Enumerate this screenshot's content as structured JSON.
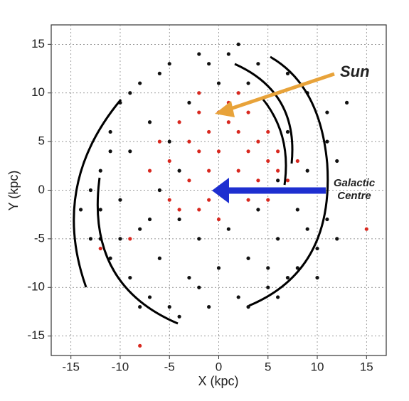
{
  "chart_data": {
    "type": "scatter",
    "x_label": "X (kpc)",
    "y_label": "Y (kpc)",
    "xlim": [
      -17,
      17
    ],
    "ylim": [
      -17,
      17
    ],
    "xticks": [
      -15,
      -10,
      -5,
      0,
      5,
      10,
      15
    ],
    "yticks": [
      -15,
      -10,
      -5,
      0,
      5,
      10,
      15
    ],
    "grid": true,
    "annotations": [
      {
        "text": "Sun",
        "color": "#e8a33a"
      },
      {
        "text": [
          "Galactic",
          "Centre"
        ],
        "color": "#1e2fd0"
      }
    ],
    "series": [
      {
        "color": "#111111",
        "x": [
          -13,
          -12,
          -11,
          -10,
          -8,
          -5,
          -2,
          1,
          4,
          7,
          9,
          11,
          12,
          11,
          10,
          8,
          5,
          2,
          -1,
          -4,
          -7,
          -9,
          -11,
          -12,
          -13,
          -9,
          -8,
          -6,
          -3,
          0,
          3,
          6,
          8,
          9,
          7,
          -7,
          -10,
          -6,
          -4,
          -2,
          1,
          4,
          -5,
          -3,
          0,
          3,
          -11,
          -12,
          -8,
          -5,
          3,
          6,
          10,
          12,
          11,
          13,
          -14,
          -9,
          -6,
          2,
          -1,
          5,
          7,
          -2,
          -10,
          -7,
          -4,
          9,
          10,
          6
        ],
        "values": [
          -5,
          2,
          6,
          9,
          11,
          13,
          14,
          14,
          13,
          12,
          10,
          8,
          3,
          -3,
          -6,
          -8,
          -10,
          -11,
          -12,
          -13,
          -11,
          -9,
          -7,
          -2,
          0,
          4,
          -4,
          -7,
          -9,
          -8,
          -7,
          -5,
          -2,
          2,
          6,
          7,
          -1,
          0,
          -3,
          -5,
          -4,
          -2,
          5,
          9,
          11,
          11,
          4,
          -5,
          -12,
          -12,
          -12,
          -11,
          -9,
          -5,
          5,
          9,
          -2,
          10,
          12,
          15,
          13,
          -8,
          -9,
          -10,
          -5,
          -3,
          2,
          -4,
          0,
          1
        ]
      },
      {
        "color": "#d8281f",
        "x": [
          0,
          1,
          2,
          -1,
          -3,
          -2,
          0,
          3,
          5,
          4,
          2,
          -1,
          -3,
          -5,
          -4,
          -2,
          3,
          5,
          6,
          7,
          1,
          -1,
          3,
          5,
          -2,
          0,
          -5,
          -6,
          -7,
          1,
          -2,
          2,
          6,
          -4,
          4,
          8,
          -9,
          -12,
          15,
          -8
        ],
        "values": [
          8,
          7,
          6,
          6,
          5,
          4,
          4,
          4,
          3,
          1,
          2,
          2,
          1,
          3,
          7,
          8,
          8,
          6,
          2,
          1,
          0,
          -1,
          -1,
          -1,
          -2,
          -3,
          -1,
          5,
          2,
          9,
          10,
          10,
          4,
          -2,
          5,
          3,
          -5,
          -6,
          -4,
          -16
        ]
      }
    ]
  }
}
